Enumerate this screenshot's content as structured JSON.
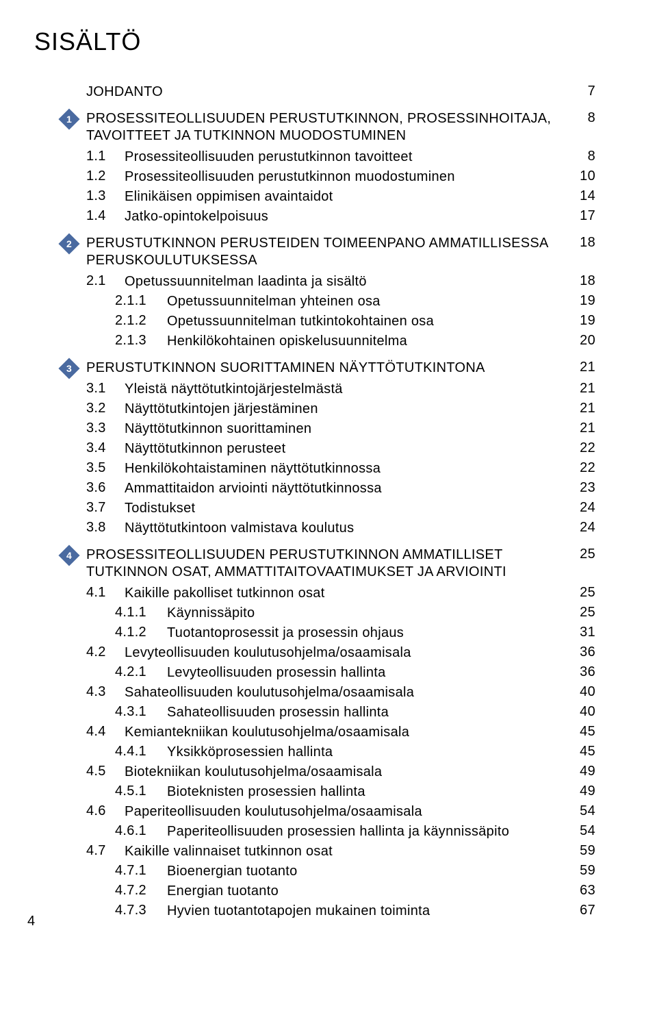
{
  "title": "SISÄLTÖ",
  "page_number": "4",
  "colors": {
    "text": "#000000",
    "background": "#ffffff",
    "marker_bg": "#4a6aa0",
    "marker_text": "#ffffff"
  },
  "typography": {
    "title_size_pt": 27,
    "body_size_pt": 15,
    "font_family": "Arial Narrow"
  },
  "entries": [
    {
      "type": "section",
      "marker": "",
      "num": "",
      "label": "JOHDANTO",
      "page": "7",
      "caps": true,
      "spacer_above": false
    },
    {
      "type": "section",
      "marker": "1",
      "num": "",
      "label": "PROSESSITEOLLISUUDEN PERUSTUTKINNON, PROSESSINHOITAJA, TAVOITTEET JA TUTKINNON MUODOSTUMINEN",
      "page": "8",
      "caps": true,
      "spacer_above": true
    },
    {
      "type": "sub",
      "num": "1.1",
      "label": "Prosessiteollisuuden perustutkinnon tavoitteet",
      "page": "8"
    },
    {
      "type": "sub",
      "num": "1.2",
      "label": "Prosessiteollisuuden perustutkinnon muodostuminen",
      "page": "10"
    },
    {
      "type": "sub",
      "num": "1.3",
      "label": "Elinikäisen oppimisen avaintaidot",
      "page": "14"
    },
    {
      "type": "sub",
      "num": "1.4",
      "label": "Jatko-opintokelpoisuus",
      "page": "17"
    },
    {
      "type": "section",
      "marker": "2",
      "num": "",
      "label": "PERUSTUTKINNON PERUSTEIDEN TOIMEENPANO AMMATILLISESSA PERUSKOULUTUKSESSA",
      "page": "18",
      "caps": true,
      "spacer_above": true
    },
    {
      "type": "sub",
      "num": "2.1",
      "label": "Opetussuunnitelman laadinta ja sisältö",
      "page": "18"
    },
    {
      "type": "subsub",
      "num": "2.1.1",
      "label": "Opetussuunnitelman yhteinen osa",
      "page": "19"
    },
    {
      "type": "subsub",
      "num": "2.1.2",
      "label": "Opetussuunnitelman tutkintokohtainen osa",
      "page": "19"
    },
    {
      "type": "subsub",
      "num": "2.1.3",
      "label": "Henkilökohtainen opiskelusuunnitelma",
      "page": "20"
    },
    {
      "type": "section",
      "marker": "3",
      "num": "",
      "label": "PERUSTUTKINNON SUORITTAMINEN NÄYTTÖTUTKINTONA",
      "page": "21",
      "caps": true,
      "spacer_above": true
    },
    {
      "type": "sub",
      "num": "3.1",
      "label": "Yleistä näyttötutkintojärjestelmästä",
      "page": "21"
    },
    {
      "type": "sub",
      "num": "3.2",
      "label": "Näyttötutkintojen järjestäminen",
      "page": "21"
    },
    {
      "type": "sub",
      "num": "3.3",
      "label": "Näyttötutkinnon suorittaminen",
      "page": "21"
    },
    {
      "type": "sub",
      "num": "3.4",
      "label": "Näyttötutkinnon perusteet",
      "page": "22"
    },
    {
      "type": "sub",
      "num": "3.5",
      "label": "Henkilökohtaistaminen näyttötutkinnossa",
      "page": "22"
    },
    {
      "type": "sub",
      "num": "3.6",
      "label": "Ammattitaidon arviointi näyttötutkinnossa",
      "page": "23"
    },
    {
      "type": "sub",
      "num": "3.7",
      "label": "Todistukset",
      "page": "24"
    },
    {
      "type": "sub",
      "num": "3.8",
      "label": "Näyttötutkintoon valmistava koulutus",
      "page": "24"
    },
    {
      "type": "section",
      "marker": "4",
      "num": "",
      "label": "PROSESSITEOLLISUUDEN PERUSTUTKINNON AMMATILLISET TUTKINNON OSAT, AMMATTITAITOVAATIMUKSET JA ARVIOINTI",
      "page": "25",
      "caps": true,
      "spacer_above": true
    },
    {
      "type": "sub",
      "num": "4.1",
      "label": "Kaikille pakolliset tutkinnon osat",
      "page": "25"
    },
    {
      "type": "subsub",
      "num": "4.1.1",
      "label": "Käynnissäpito",
      "page": "25"
    },
    {
      "type": "subsub",
      "num": "4.1.2",
      "label": "Tuotantoprosessit ja prosessin ohjaus",
      "page": "31"
    },
    {
      "type": "sub",
      "num": "4.2",
      "label": "Levyteollisuuden koulutusohjelma/osaamisala",
      "page": "36"
    },
    {
      "type": "subsub",
      "num": "4.2.1",
      "label": "Levyteollisuuden prosessin hallinta",
      "page": "36"
    },
    {
      "type": "sub",
      "num": "4.3",
      "label": "Sahateollisuuden koulutusohjelma/osaamisala",
      "page": "40"
    },
    {
      "type": "subsub",
      "num": "4.3.1",
      "label": "Sahateollisuuden prosessin hallinta",
      "page": "40"
    },
    {
      "type": "sub",
      "num": "4.4",
      "label": "Kemiantekniikan koulutusohjelma/osaamisala",
      "page": "45"
    },
    {
      "type": "subsub",
      "num": "4.4.1",
      "label": "Yksikköprosessien hallinta",
      "page": "45"
    },
    {
      "type": "sub",
      "num": "4.5",
      "label": "Biotekniikan koulutusohjelma/osaamisala",
      "page": "49"
    },
    {
      "type": "subsub",
      "num": "4.5.1",
      "label": "Bioteknisten prosessien hallinta",
      "page": "49"
    },
    {
      "type": "sub",
      "num": "4.6",
      "label": "Paperiteollisuuden koulutusohjelma/osaamisala",
      "page": "54"
    },
    {
      "type": "subsub",
      "num": "4.6.1",
      "label": "Paperiteollisuuden prosessien hallinta ja käynnissäpito",
      "page": "54"
    },
    {
      "type": "sub",
      "num": "4.7",
      "label": "Kaikille valinnaiset tutkinnon osat",
      "page": "59"
    },
    {
      "type": "subsub",
      "num": "4.7.1",
      "label": "Bioenergian tuotanto",
      "page": "59"
    },
    {
      "type": "subsub",
      "num": "4.7.2",
      "label": "Energian tuotanto",
      "page": "63"
    },
    {
      "type": "subsub",
      "num": "4.7.3",
      "label": "Hyvien tuotantotapojen mukainen toiminta",
      "page": "67"
    }
  ]
}
